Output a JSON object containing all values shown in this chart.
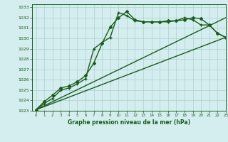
{
  "title": "Graphe pression niveau de la mer (hPa)",
  "bg_color": "#d4edef",
  "grid_color": "#b0cfcf",
  "line_color": "#1a5c1a",
  "xlim": [
    -0.5,
    23
  ],
  "ylim": [
    1023,
    1033.3
  ],
  "yticks": [
    1023,
    1024,
    1025,
    1026,
    1027,
    1028,
    1029,
    1030,
    1031,
    1032,
    1033
  ],
  "xticks": [
    0,
    1,
    2,
    3,
    4,
    5,
    6,
    7,
    8,
    9,
    10,
    11,
    12,
    13,
    14,
    15,
    16,
    17,
    18,
    19,
    20,
    21,
    22,
    23
  ],
  "series": [
    {
      "x": [
        0,
        1,
        2,
        3,
        4,
        5,
        6,
        7,
        8,
        9,
        10,
        11,
        12,
        13,
        14,
        15,
        16,
        17,
        18,
        19,
        20,
        21,
        22,
        23
      ],
      "y": [
        1023.1,
        1023.9,
        1024.5,
        1025.2,
        1025.4,
        1025.8,
        1026.4,
        1027.6,
        1029.5,
        1031.1,
        1032.0,
        1032.6,
        1031.8,
        1031.6,
        1031.6,
        1031.6,
        1031.7,
        1031.7,
        1031.8,
        1032.0,
        1031.9,
        1031.3,
        1030.5,
        1030.1
      ],
      "marker": "D",
      "markersize": 2.0,
      "linewidth": 1.0,
      "zorder": 3
    },
    {
      "x": [
        0,
        1,
        2,
        3,
        4,
        5,
        6,
        7,
        8,
        9,
        10,
        11,
        12,
        13,
        14,
        15,
        16,
        17,
        18,
        19,
        20,
        21,
        22,
        23
      ],
      "y": [
        1023.1,
        1023.7,
        1024.2,
        1025.0,
        1025.2,
        1025.6,
        1026.1,
        1029.0,
        1029.6,
        1030.1,
        1032.5,
        1032.2,
        1031.7,
        1031.6,
        1031.6,
        1031.6,
        1031.6,
        1031.7,
        1032.0,
        1031.8,
        1031.3,
        1031.3,
        1030.5,
        1030.1
      ],
      "marker": "+",
      "markersize": 3.5,
      "linewidth": 1.0,
      "zorder": 3
    },
    {
      "x": [
        0,
        23
      ],
      "y": [
        1023.1,
        1032.0
      ],
      "marker": null,
      "markersize": 0,
      "linewidth": 1.0,
      "zorder": 2
    },
    {
      "x": [
        0,
        23
      ],
      "y": [
        1023.1,
        1030.1
      ],
      "marker": null,
      "markersize": 0,
      "linewidth": 1.0,
      "zorder": 2
    }
  ]
}
